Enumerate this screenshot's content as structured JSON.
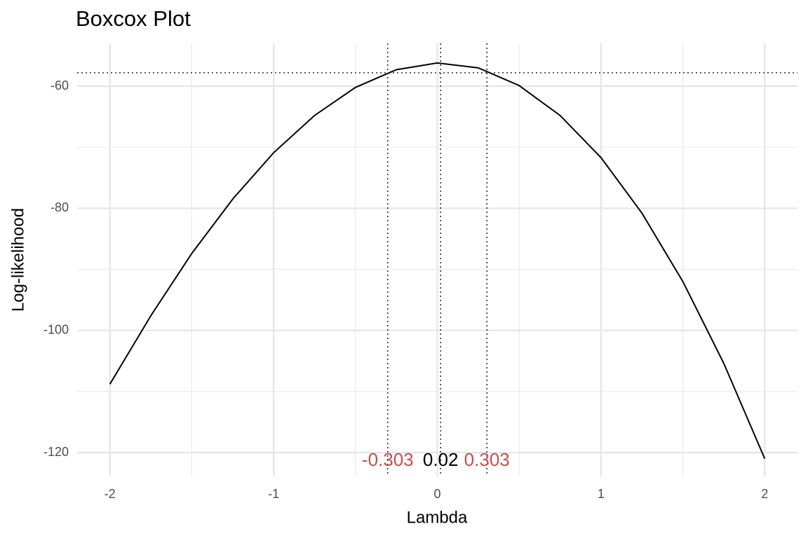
{
  "chart_data": {
    "type": "line",
    "title": "Boxcox Plot",
    "x_label": "Lambda",
    "y_label": "Log-likelihood",
    "x": [
      -2,
      -1.75,
      -1.5,
      -1.25,
      -1,
      -0.75,
      -0.5,
      -0.25,
      0,
      0.25,
      0.5,
      0.75,
      1,
      1.25,
      1.5,
      1.75,
      2
    ],
    "series": [
      {
        "color": "#000000",
        "values": [
          -108.8,
          -97.6,
          -87.4,
          -78.5,
          -70.9,
          -64.8,
          -60.2,
          -57.3,
          -56.2,
          -57.0,
          -59.9,
          -64.8,
          -71.7,
          -80.8,
          -92.0,
          -105.4,
          -121.0
        ]
      }
    ],
    "xlim": [
      -2.2,
      2.2
    ],
    "xticks": [
      -2,
      -1,
      0,
      1,
      2
    ],
    "xminor": [
      -1.5,
      -0.5,
      0.5,
      1.5
    ],
    "ylim": [
      -123.9,
      -53.0
    ],
    "yticks": [
      -120,
      -100,
      -80,
      -60
    ],
    "yminor": [
      -110,
      -90,
      -70
    ],
    "grid": true,
    "hline": -57.8,
    "vlines": [
      {
        "value": -0.303,
        "color": "#c0504d"
      },
      {
        "value": 0.02,
        "color": "#000000"
      },
      {
        "value": 0.303,
        "color": "#c0504d"
      }
    ]
  }
}
